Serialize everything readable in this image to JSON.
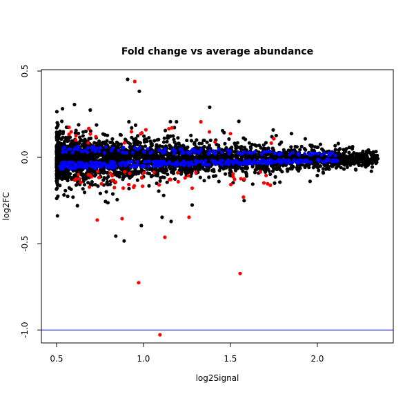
{
  "chart_data": {
    "type": "scatter",
    "title": "Fold change vs average abundance",
    "xlabel": "log2Signal",
    "ylabel": "log2FC",
    "xlim": [
      0.413,
      2.437
    ],
    "ylim": [
      -1.075,
      0.508
    ],
    "xticks": [
      0.5,
      1.0,
      1.5,
      2.0
    ],
    "xtick_labels": [
      "0.5",
      "1.0",
      "1.5",
      "2.0"
    ],
    "yticks": [
      0.5,
      0.0,
      -0.5,
      -1.0
    ],
    "ytick_labels": [
      "0.5",
      "0.0",
      "-0.5",
      "-1.0"
    ],
    "grid": false,
    "hline": {
      "y": -1.0,
      "color": "#0000ff"
    },
    "colors": {
      "not_significant": "#000000",
      "significant_up_down": "#ff0000",
      "significant_small": "#0000ff"
    },
    "bulk_cloud": {
      "description_series": "dense points",
      "x_range": [
        0.5,
        2.35
      ],
      "black_count": 3200,
      "blue_count": 450,
      "red_count": 70,
      "y_sd_at_low_x": 0.065,
      "y_sd_at_high_x": 0.018
    },
    "outliers": [
      {
        "x": 0.95,
        "y": 0.44,
        "group": "red"
      },
      {
        "x": 1.095,
        "y": -1.028,
        "group": "red"
      },
      {
        "x": 0.972,
        "y": -0.726,
        "group": "red"
      },
      {
        "x": 1.556,
        "y": -0.673,
        "group": "red"
      },
      {
        "x": 1.123,
        "y": -0.463,
        "group": "red"
      },
      {
        "x": 1.262,
        "y": -0.347,
        "group": "red"
      },
      {
        "x": 0.734,
        "y": -0.363,
        "group": "red"
      },
      {
        "x": 0.877,
        "y": -0.355,
        "group": "red"
      },
      {
        "x": 1.33,
        "y": 0.206,
        "group": "red"
      },
      {
        "x": 1.575,
        "y": -0.23,
        "group": "red"
      },
      {
        "x": 0.909,
        "y": 0.452,
        "group": "black"
      },
      {
        "x": 0.976,
        "y": 0.383,
        "group": "black"
      },
      {
        "x": 0.603,
        "y": 0.306,
        "group": "black"
      },
      {
        "x": 0.889,
        "y": -0.484,
        "group": "black"
      },
      {
        "x": 0.841,
        "y": -0.456,
        "group": "black"
      },
      {
        "x": 0.988,
        "y": -0.395,
        "group": "black"
      },
      {
        "x": 1.107,
        "y": -0.347,
        "group": "black"
      },
      {
        "x": 1.159,
        "y": -0.371,
        "group": "black"
      },
      {
        "x": 1.381,
        "y": 0.29,
        "group": "black"
      },
      {
        "x": 0.694,
        "y": 0.274,
        "group": "black"
      },
      {
        "x": 0.62,
        "y": -0.28,
        "group": "black"
      },
      {
        "x": 2.33,
        "y": -0.02,
        "group": "black"
      }
    ]
  }
}
